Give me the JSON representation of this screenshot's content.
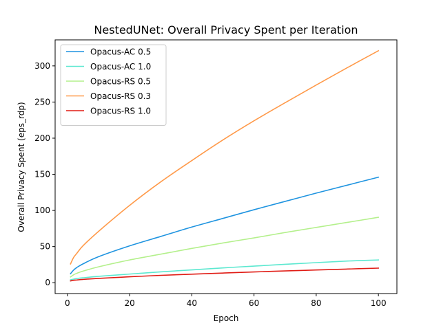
{
  "chart_data": {
    "type": "line",
    "title": "NestedUNet: Overall Privacy Spent per Iteration",
    "xlabel": "Epoch",
    "ylabel": "Overall Privacy Spent (eps_rdp)",
    "xlim": [
      -3.95,
      105.95
    ],
    "ylim": [
      -15,
      336
    ],
    "xticks": [
      0,
      20,
      40,
      60,
      80,
      100
    ],
    "yticks": [
      0,
      50,
      100,
      150,
      200,
      250,
      300
    ],
    "grid": false,
    "legend_position": "upper-left",
    "series": [
      {
        "name": "Opacus-AC 0.5",
        "color": "#1f94e0",
        "points": [
          [
            1,
            12.5
          ],
          [
            2,
            17.5
          ],
          [
            3,
            21
          ],
          [
            5,
            26
          ],
          [
            10,
            36
          ],
          [
            20,
            51
          ],
          [
            30,
            64
          ],
          [
            40,
            77
          ],
          [
            50,
            89
          ],
          [
            60,
            101
          ],
          [
            70,
            112.5
          ],
          [
            80,
            124
          ],
          [
            90,
            135
          ],
          [
            100,
            146
          ]
        ]
      },
      {
        "name": "Opacus-AC 1.0",
        "color": "#5ce8d0",
        "points": [
          [
            1,
            4
          ],
          [
            2,
            5
          ],
          [
            3,
            5.8
          ],
          [
            5,
            6.8
          ],
          [
            10,
            8.8
          ],
          [
            20,
            12
          ],
          [
            30,
            15
          ],
          [
            40,
            17.8
          ],
          [
            50,
            20.5
          ],
          [
            60,
            23
          ],
          [
            70,
            25.5
          ],
          [
            80,
            27.8
          ],
          [
            90,
            30
          ],
          [
            100,
            31.5
          ]
        ]
      },
      {
        "name": "Opacus-RS 0.5",
        "color": "#b4f08c",
        "points": [
          [
            1,
            8
          ],
          [
            2,
            11
          ],
          [
            3,
            13
          ],
          [
            5,
            16
          ],
          [
            10,
            22
          ],
          [
            20,
            31.5
          ],
          [
            30,
            39.5
          ],
          [
            40,
            47.5
          ],
          [
            50,
            55
          ],
          [
            60,
            62
          ],
          [
            70,
            69.5
          ],
          [
            80,
            76.5
          ],
          [
            90,
            83.5
          ],
          [
            100,
            90.5
          ]
        ]
      },
      {
        "name": "Opacus-RS 0.3",
        "color": "#ff9a4a",
        "points": [
          [
            1,
            26
          ],
          [
            2,
            35
          ],
          [
            3,
            40.5
          ],
          [
            5,
            51
          ],
          [
            10,
            71
          ],
          [
            20,
            107
          ],
          [
            30,
            139.5
          ],
          [
            40,
            169
          ],
          [
            50,
            197.5
          ],
          [
            60,
            224
          ],
          [
            70,
            249
          ],
          [
            80,
            273.5
          ],
          [
            90,
            297.5
          ],
          [
            100,
            321
          ]
        ]
      },
      {
        "name": "Opacus-RS 1.0",
        "color": "#e01b14",
        "points": [
          [
            1,
            2.5
          ],
          [
            2,
            3.4
          ],
          [
            3,
            3.8
          ],
          [
            5,
            4.6
          ],
          [
            10,
            6
          ],
          [
            20,
            8.2
          ],
          [
            30,
            10.2
          ],
          [
            40,
            11.8
          ],
          [
            50,
            13.4
          ],
          [
            60,
            14.9
          ],
          [
            70,
            16.3
          ],
          [
            80,
            17.6
          ],
          [
            90,
            18.9
          ],
          [
            100,
            20.2
          ]
        ]
      }
    ]
  }
}
